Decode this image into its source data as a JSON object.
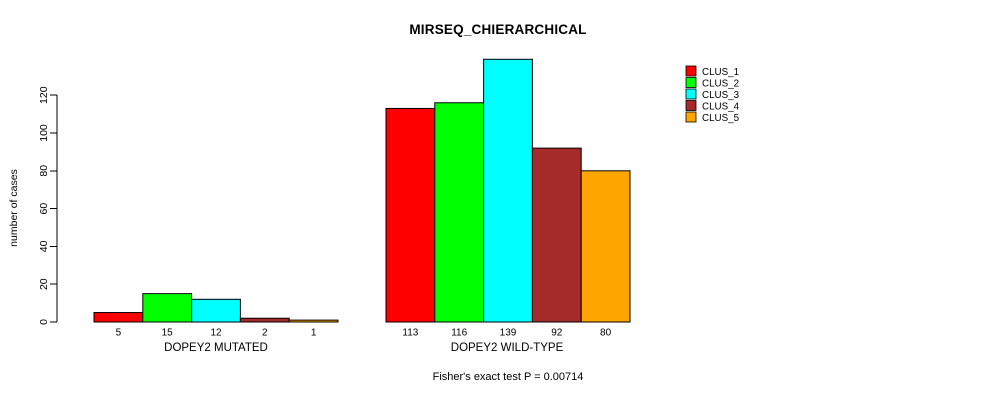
{
  "title": "MIRSEQ_CHIERARCHICAL",
  "footer": "Fisher's exact test P = 0.00714",
  "chart_data": {
    "type": "bar",
    "title": "MIRSEQ_CHIERARCHICAL",
    "ylabel": "number of cases",
    "xlabel": "",
    "ylim": [
      0,
      139
    ],
    "yticks": [
      0,
      20,
      40,
      60,
      80,
      100,
      120
    ],
    "grid": false,
    "legend_position": "top-right-outside",
    "bar_border_color": "#000000",
    "groups": [
      {
        "label": "DOPEY2 MUTATED",
        "values": [
          5,
          15,
          12,
          2,
          1
        ]
      },
      {
        "label": "DOPEY2 WILD-TYPE",
        "values": [
          113,
          116,
          139,
          92,
          80
        ]
      }
    ],
    "series": [
      {
        "name": "CLUS_1",
        "color": "#FF0000",
        "values": [
          5,
          113
        ]
      },
      {
        "name": "CLUS_2",
        "color": "#00FF00",
        "values": [
          15,
          116
        ]
      },
      {
        "name": "CLUS_3",
        "color": "#00FFFF",
        "values": [
          12,
          139
        ]
      },
      {
        "name": "CLUS_4",
        "color": "#A52A2A",
        "values": [
          2,
          92
        ]
      },
      {
        "name": "CLUS_5",
        "color": "#FFA500",
        "values": [
          1,
          80
        ]
      }
    ],
    "annotation": "Fisher's exact test P = 0.00714"
  }
}
